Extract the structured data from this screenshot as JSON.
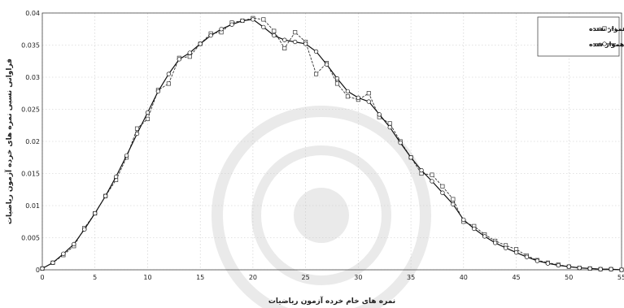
{
  "chart_data": {
    "type": "line",
    "xlabel": "نمره های خام خرده آزمون ریاضیات",
    "ylabel": "فراوانی نسبی نمره های خرده آزمون ریاضیات",
    "xlim": [
      0,
      55
    ],
    "ylim": [
      0,
      0.04
    ],
    "xticks": [
      "0",
      "5",
      "10",
      "15",
      "20",
      "25",
      "30",
      "35",
      "40",
      "45",
      "50",
      "55"
    ],
    "yticks": [
      "0",
      "0.005",
      "0.01",
      "0.015",
      "0.02",
      "0.025",
      "0.03",
      "0.035",
      "0.04"
    ],
    "grid": true,
    "legend_position": "top-right",
    "series": [
      {
        "name": "هموار نشده",
        "marker": "square",
        "color": "#333333",
        "x": [
          0,
          1,
          2,
          3,
          4,
          5,
          6,
          7,
          8,
          9,
          10,
          11,
          12,
          13,
          14,
          15,
          16,
          17,
          18,
          19,
          20,
          21,
          22,
          23,
          24,
          25,
          26,
          27,
          28,
          29,
          30,
          31,
          32,
          33,
          34,
          35,
          36,
          37,
          38,
          39,
          40,
          41,
          42,
          43,
          44,
          45,
          46,
          47,
          48,
          49,
          50,
          51,
          52,
          53,
          54,
          55
        ],
        "y": [
          0.0002,
          0.0011,
          0.0023,
          0.0037,
          0.0065,
          0.0088,
          0.0115,
          0.014,
          0.0175,
          0.022,
          0.0235,
          0.028,
          0.029,
          0.033,
          0.0332,
          0.0352,
          0.0368,
          0.037,
          0.0385,
          0.0388,
          0.0392,
          0.039,
          0.0372,
          0.0345,
          0.037,
          0.0355,
          0.0305,
          0.0322,
          0.029,
          0.027,
          0.0265,
          0.0275,
          0.0238,
          0.0228,
          0.02,
          0.0175,
          0.015,
          0.0148,
          0.013,
          0.011,
          0.0075,
          0.0068,
          0.0055,
          0.0045,
          0.0038,
          0.0032,
          0.0022,
          0.0015,
          0.0011,
          0.0008,
          0.0005,
          0.0003,
          0.0002,
          0.0001,
          0.0001,
          0.0
        ]
      },
      {
        "name": "هموار شده",
        "marker": "circle",
        "color": "#111111",
        "x": [
          0,
          1,
          2,
          3,
          4,
          5,
          6,
          7,
          8,
          9,
          10,
          11,
          12,
          13,
          14,
          15,
          16,
          17,
          18,
          19,
          20,
          21,
          22,
          23,
          24,
          25,
          26,
          27,
          28,
          29,
          30,
          31,
          32,
          33,
          34,
          35,
          36,
          37,
          38,
          39,
          40,
          41,
          42,
          43,
          44,
          45,
          46,
          47,
          48,
          49,
          50,
          51,
          52,
          53,
          54,
          55
        ],
        "y": [
          0.0002,
          0.0011,
          0.0025,
          0.004,
          0.0063,
          0.0088,
          0.0115,
          0.0145,
          0.0178,
          0.0212,
          0.0245,
          0.0278,
          0.0305,
          0.0328,
          0.0338,
          0.0352,
          0.0365,
          0.0375,
          0.0382,
          0.0388,
          0.039,
          0.0378,
          0.0365,
          0.0358,
          0.0355,
          0.0352,
          0.034,
          0.032,
          0.0298,
          0.0278,
          0.0268,
          0.0262,
          0.0242,
          0.0222,
          0.0198,
          0.0175,
          0.0155,
          0.0138,
          0.012,
          0.0102,
          0.0078,
          0.0064,
          0.0052,
          0.0042,
          0.0034,
          0.0027,
          0.002,
          0.0014,
          0.001,
          0.0007,
          0.0005,
          0.0003,
          0.0002,
          0.0001,
          0.0001,
          0.0
        ]
      }
    ]
  }
}
